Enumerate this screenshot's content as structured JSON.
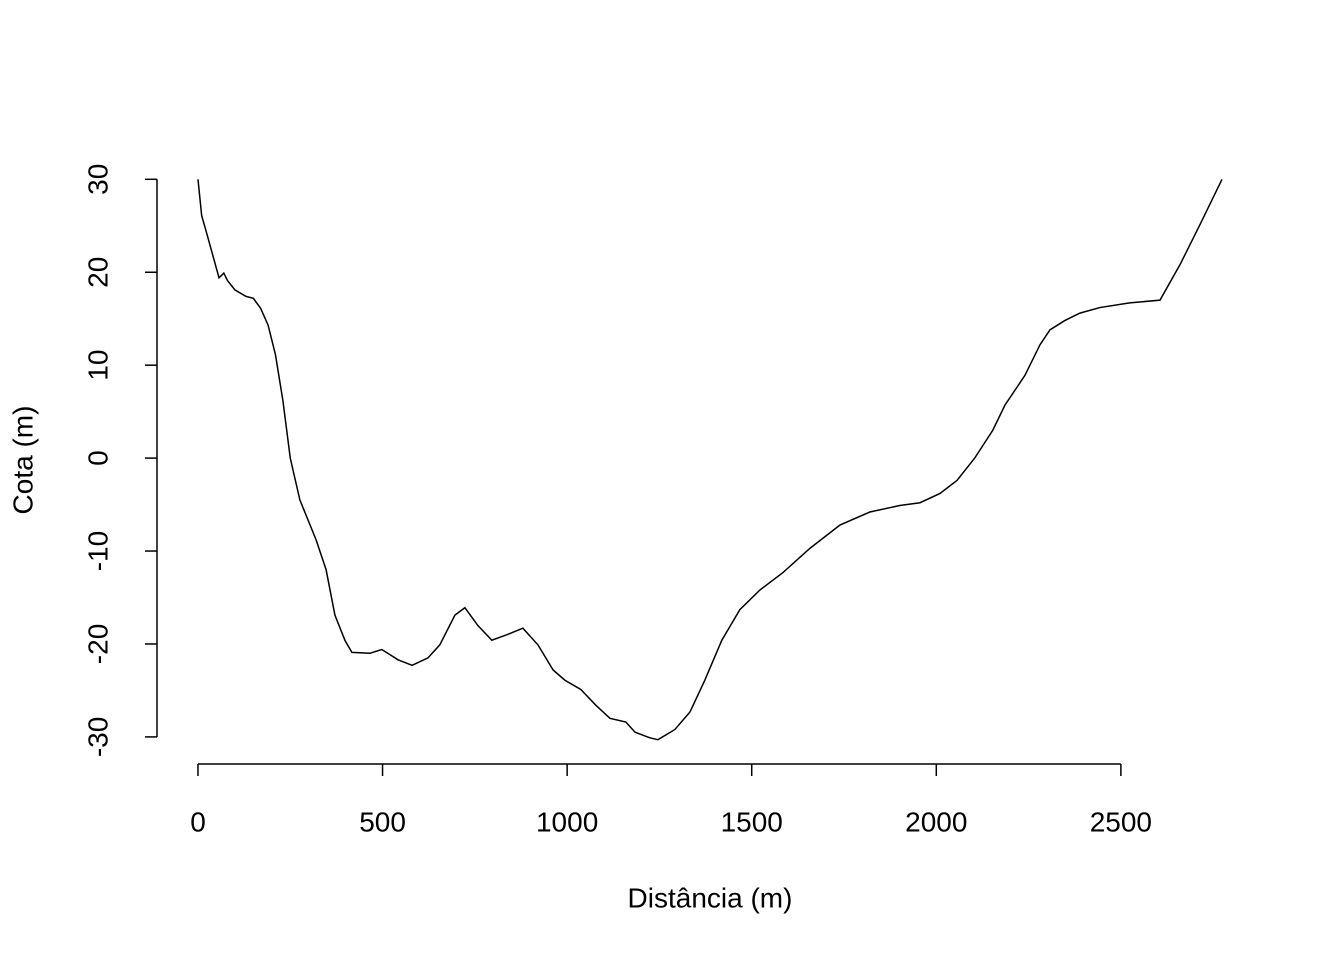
{
  "chart_data": {
    "type": "line",
    "x_label": "Distância (m)",
    "y_label": "Cota (m)",
    "x": [
      0,
      10,
      25,
      57,
      70,
      80,
      100,
      130,
      150,
      170,
      190,
      210,
      230,
      250,
      276,
      320,
      347,
      371,
      398,
      417,
      466,
      498,
      542,
      580,
      623,
      655,
      696,
      723,
      758,
      796,
      837,
      880,
      921,
      962,
      994,
      1037,
      1078,
      1116,
      1159,
      1184,
      1224,
      1246,
      1292,
      1333,
      1373,
      1419,
      1468,
      1522,
      1585,
      1658,
      1739,
      1820,
      1901,
      1956,
      2010,
      2056,
      2104,
      2153,
      2186,
      2240,
      2281,
      2308,
      2348,
      2389,
      2443,
      2524,
      2606,
      2660,
      2714,
      2774
    ],
    "series": [
      {
        "color": "#000000",
        "values": [
          30,
          26.1,
          24,
          19.4,
          19.9,
          19.1,
          18.1,
          17.4,
          17.2,
          16.1,
          14.3,
          11.1,
          6.2,
          0,
          -4.5,
          -8.8,
          -12,
          -16.9,
          -19.6,
          -20.9,
          -21,
          -20.6,
          -21.7,
          -22.3,
          -21.5,
          -20.1,
          -16.9,
          -16.1,
          -18,
          -19.6,
          -19,
          -18.3,
          -20.1,
          -22.8,
          -23.9,
          -24.9,
          -26.6,
          -28,
          -28.4,
          -29.5,
          -30.1,
          -30.3,
          -29.2,
          -27.3,
          -23.9,
          -19.6,
          -16.3,
          -14.2,
          -12.3,
          -9.7,
          -7.2,
          -5.8,
          -5.1,
          -4.8,
          -3.8,
          -2.4,
          0,
          3,
          5.7,
          8.9,
          12.2,
          13.8,
          14.8,
          15.6,
          16.2,
          16.7,
          17,
          20.8,
          25.1,
          30
        ]
      }
    ],
    "xlim": [
      -111,
      2885
    ],
    "ylim": [
      -32.7,
      32.4
    ],
    "xticks": [
      0,
      500,
      1000,
      1500,
      2000,
      2500
    ],
    "yticks": [
      -30,
      -20,
      -10,
      0,
      10,
      20,
      30
    ]
  }
}
